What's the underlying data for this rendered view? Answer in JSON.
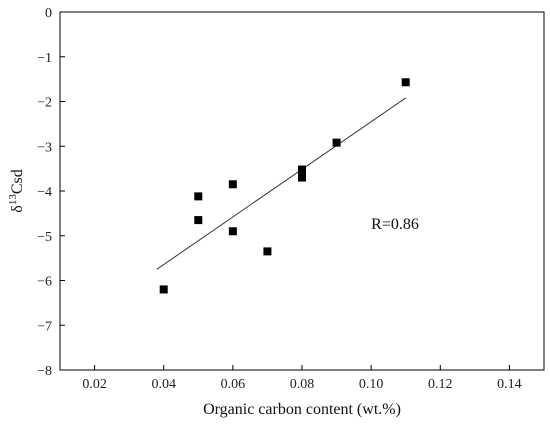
{
  "chart_data": {
    "type": "scatter",
    "title": "",
    "xlabel": "Organic carbon content (wt.%)",
    "ylabel_main": "δ",
    "ylabel_sup": "13",
    "ylabel_tail": "Csd",
    "xlim": [
      0.01,
      0.15
    ],
    "ylim": [
      -8,
      0
    ],
    "xticks": [
      0.02,
      0.04,
      0.06,
      0.08,
      0.1,
      0.12,
      0.14
    ],
    "xtick_labels": [
      "0.02",
      "0.04",
      "0.06",
      "0.08",
      "0.10",
      "0.12",
      "0.14"
    ],
    "yticks": [
      0,
      -1,
      -2,
      -3,
      -4,
      -5,
      -6,
      -7,
      -8
    ],
    "ytick_labels": [
      "0",
      "−1",
      "−2",
      "−3",
      "−4",
      "−5",
      "−6",
      "−7",
      "−8"
    ],
    "grid": false,
    "series": [
      {
        "points": [
          [
            0.04,
            -6.2
          ],
          [
            0.05,
            -4.12
          ],
          [
            0.05,
            -4.65
          ],
          [
            0.06,
            -3.85
          ],
          [
            0.06,
            -4.9
          ],
          [
            0.07,
            -5.35
          ],
          [
            0.08,
            -3.52
          ],
          [
            0.08,
            -3.7
          ],
          [
            0.09,
            -2.92
          ],
          [
            0.11,
            -1.57
          ]
        ]
      }
    ],
    "trendline": {
      "x": [
        0.038,
        0.11
      ],
      "y": [
        -5.75,
        -1.92
      ]
    },
    "annotation": "R=0.86",
    "annotation_pos": [
      0.1,
      -4.85
    ],
    "marker_color": "#000000"
  }
}
